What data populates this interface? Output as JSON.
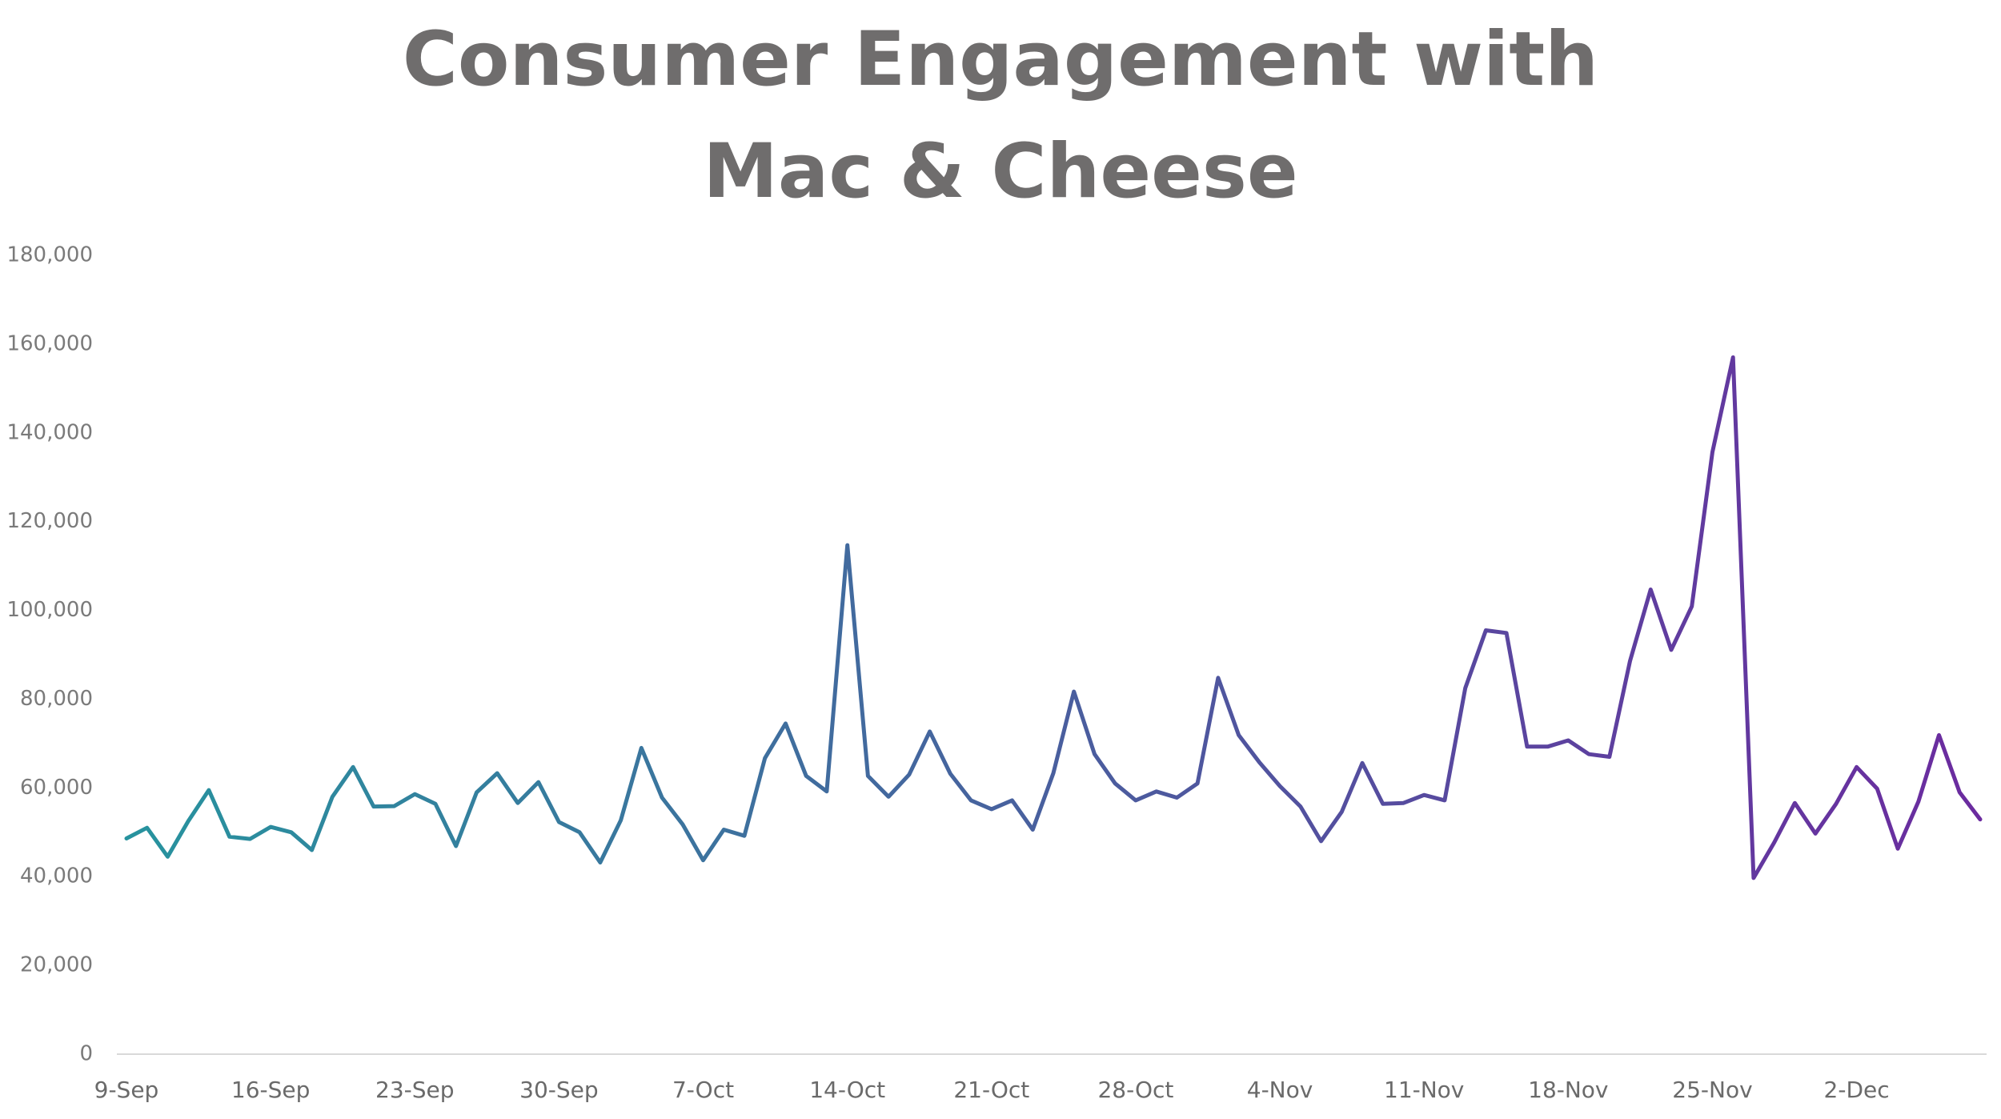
{
  "chart_data": {
    "type": "line",
    "title": [
      "Consumer Engagement with",
      "Mac & Cheese"
    ],
    "categories": [
      "9-Sep",
      null,
      null,
      null,
      null,
      null,
      null,
      "16-Sep",
      null,
      null,
      null,
      null,
      null,
      null,
      "23-Sep",
      null,
      null,
      null,
      null,
      null,
      null,
      "30-Sep",
      null,
      null,
      null,
      null,
      null,
      null,
      "7-Oct",
      null,
      null,
      null,
      null,
      null,
      null,
      "14-Oct",
      null,
      null,
      null,
      null,
      null,
      null,
      "21-Oct",
      null,
      null,
      null,
      null,
      null,
      null,
      "28-Oct",
      null,
      null,
      null,
      null,
      null,
      null,
      "4-Nov",
      null,
      null,
      null,
      null,
      null,
      null,
      "11-Nov",
      null,
      null,
      null,
      null,
      null,
      null,
      "18-Nov",
      null,
      null,
      null,
      null,
      null,
      null,
      "25-Nov",
      null,
      null,
      null,
      null,
      null,
      null,
      "2-Dec",
      null,
      null,
      null,
      null,
      null,
      null
    ],
    "series": [
      {
        "gradient": [
          "#27939e",
          "#6b2b9f"
        ],
        "values": [
          48600,
          51000,
          44500,
          52500,
          59500,
          49000,
          48500,
          51200,
          50000,
          46000,
          58000,
          64700,
          55800,
          55900,
          58600,
          56400,
          46900,
          59000,
          63300,
          56600,
          61300,
          52300,
          50000,
          43200,
          52700,
          69000,
          57800,
          51800,
          43700,
          50600,
          49200,
          66700,
          74500,
          62700,
          59200,
          114700,
          62700,
          58000,
          63000,
          72700,
          63200,
          57200,
          55200,
          57200,
          50600,
          63300,
          81700,
          67600,
          61000,
          57200,
          59200,
          57800,
          61000,
          84800,
          71900,
          65800,
          60400,
          55800,
          48000,
          54600,
          65600,
          56400,
          56600,
          58400,
          57200,
          82500,
          95500,
          94900,
          69300,
          69300,
          70700,
          67600,
          67000,
          88600,
          104700,
          91100,
          100900,
          135700,
          157000,
          39700,
          47700,
          56600,
          49700,
          56400,
          64700,
          59800,
          46300,
          56900,
          71900,
          59000,
          52900
        ]
      }
    ],
    "ylim": [
      0,
      180000
    ],
    "yticks": [
      0,
      {
        "value": 20000,
        "label": "20,000"
      },
      {
        "value": 40000,
        "label": "40,000"
      },
      {
        "value": 60000,
        "label": "60,000"
      },
      {
        "value": 80000,
        "label": "80,000"
      },
      {
        "value": 100000,
        "label": "100,000"
      },
      {
        "value": 120000,
        "label": "120,000"
      },
      {
        "value": 140000,
        "label": "140,000"
      },
      {
        "value": 160000,
        "label": "160,000"
      },
      {
        "value": 180000,
        "label": "180,000"
      }
    ],
    "grid": false
  }
}
